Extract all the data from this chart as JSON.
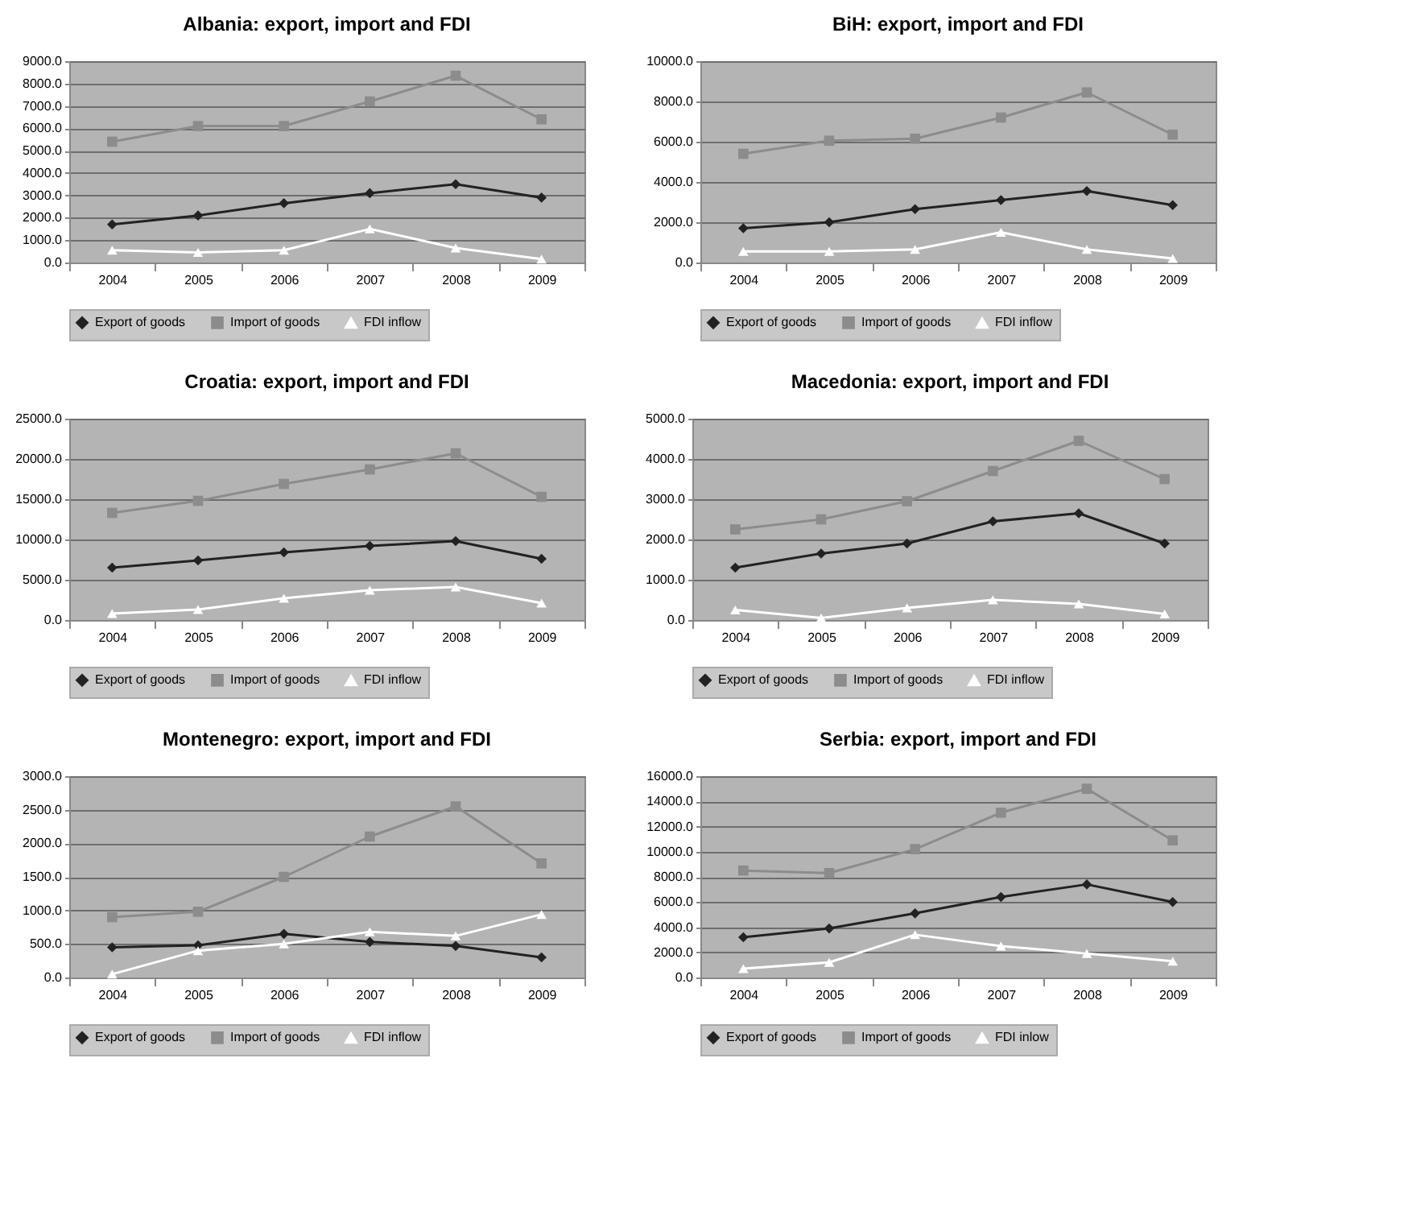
{
  "chart_data": [
    {
      "type": "line",
      "title": "Albania: export, import and FDI",
      "categories": [
        "2004",
        "2005",
        "2006",
        "2007",
        "2008",
        "2009"
      ],
      "grid": "y",
      "legend": "bottom",
      "ylim": [
        0,
        9000
      ],
      "yticks": [
        {
          "value": 0,
          "label": "0.0"
        },
        {
          "value": 1000,
          "label": "1000.0"
        },
        {
          "value": 2000,
          "label": "2000.0"
        },
        {
          "value": 3000,
          "label": "3000.0"
        },
        {
          "value": 4000,
          "label": "4000.0"
        },
        {
          "value": 5000,
          "label": "5000.0"
        },
        {
          "value": 6000,
          "label": "6000.0"
        },
        {
          "value": 7000,
          "label": "7000.0"
        },
        {
          "value": 8000,
          "label": "8000.0"
        },
        {
          "value": 9000,
          "label": "9000.0"
        }
      ],
      "series": [
        {
          "name": "Export of goods",
          "color": "#222222",
          "marker": "diamond",
          "values": [
            1700,
            2100,
            2650,
            3100,
            3500,
            2900
          ]
        },
        {
          "name": "Import of goods",
          "color": "#8c8c8c",
          "marker": "square",
          "values": [
            5400,
            6100,
            6100,
            7200,
            8350,
            6400
          ]
        },
        {
          "name": "FDI inflow",
          "color": "#ffffff",
          "marker": "triangle",
          "values": [
            550,
            450,
            550,
            1500,
            650,
            150
          ]
        }
      ]
    },
    {
      "type": "line",
      "title": "BiH: export, import and FDI",
      "categories": [
        "2004",
        "2005",
        "2006",
        "2007",
        "2008",
        "2009"
      ],
      "grid": "y",
      "legend": "bottom",
      "ylim": [
        0,
        10000
      ],
      "yticks": [
        {
          "value": 0,
          "label": "0.0"
        },
        {
          "value": 2000,
          "label": "2000.0"
        },
        {
          "value": 4000,
          "label": "4000.0"
        },
        {
          "value": 6000,
          "label": "6000.0"
        },
        {
          "value": 8000,
          "label": "8000.0"
        },
        {
          "value": 10000,
          "label": "10000.0"
        }
      ],
      "series": [
        {
          "name": "Export of goods",
          "color": "#222222",
          "marker": "diamond",
          "values": [
            1700,
            2000,
            2650,
            3100,
            3550,
            2850
          ]
        },
        {
          "name": "Import of goods",
          "color": "#8c8c8c",
          "marker": "square",
          "values": [
            5400,
            6050,
            6150,
            7200,
            8450,
            6350
          ]
        },
        {
          "name": "FDI inflow",
          "color": "#ffffff",
          "marker": "triangle",
          "values": [
            550,
            550,
            650,
            1500,
            650,
            200
          ]
        }
      ]
    },
    {
      "type": "line",
      "title": "Croatia: export, import and FDI",
      "categories": [
        "2004",
        "2005",
        "2006",
        "2007",
        "2008",
        "2009"
      ],
      "grid": "y",
      "legend": "bottom",
      "ylim": [
        0,
        25000
      ],
      "yticks": [
        {
          "value": 0,
          "label": "0.0"
        },
        {
          "value": 5000,
          "label": "5000.0"
        },
        {
          "value": 10000,
          "label": "10000.0"
        },
        {
          "value": 15000,
          "label": "15000.0"
        },
        {
          "value": 20000,
          "label": "20000.0"
        },
        {
          "value": 25000,
          "label": "25000.0"
        }
      ],
      "series": [
        {
          "name": "Export of goods",
          "color": "#222222",
          "marker": "diamond",
          "values": [
            6500,
            7400,
            8400,
            9200,
            9800,
            7600
          ]
        },
        {
          "name": "Import of goods",
          "color": "#8c8c8c",
          "marker": "square",
          "values": [
            13300,
            14800,
            16900,
            18700,
            20700,
            15300
          ]
        },
        {
          "name": "FDI inflow",
          "color": "#ffffff",
          "marker": "triangle",
          "values": [
            800,
            1300,
            2700,
            3700,
            4100,
            2100
          ]
        }
      ]
    },
    {
      "type": "line",
      "title": "Macedonia: export, import and FDI",
      "categories": [
        "2004",
        "2005",
        "2006",
        "2007",
        "2008",
        "2009"
      ],
      "grid": "y",
      "legend": "bottom",
      "ylim": [
        0,
        5000
      ],
      "yticks": [
        {
          "value": 0,
          "label": "0.0"
        },
        {
          "value": 1000,
          "label": "1000.0"
        },
        {
          "value": 2000,
          "label": "2000.0"
        },
        {
          "value": 3000,
          "label": "3000.0"
        },
        {
          "value": 4000,
          "label": "4000.0"
        },
        {
          "value": 5000,
          "label": "5000.0"
        }
      ],
      "series": [
        {
          "name": "Export of goods",
          "color": "#222222",
          "marker": "diamond",
          "values": [
            1300,
            1650,
            1900,
            2450,
            2650,
            1900
          ]
        },
        {
          "name": "Import of goods",
          "color": "#8c8c8c",
          "marker": "square",
          "values": [
            2250,
            2500,
            2950,
            3700,
            4450,
            3500
          ]
        },
        {
          "name": "FDI inflow",
          "color": "#ffffff",
          "marker": "triangle",
          "values": [
            250,
            50,
            300,
            500,
            400,
            150
          ]
        }
      ]
    },
    {
      "type": "line",
      "title": "Montenegro: export, import and FDI",
      "categories": [
        "2004",
        "2005",
        "2006",
        "2007",
        "2008",
        "2009"
      ],
      "grid": "y",
      "legend": "bottom",
      "ylim": [
        0,
        3000
      ],
      "yticks": [
        {
          "value": 0,
          "label": "0.0"
        },
        {
          "value": 500,
          "label": "500.0"
        },
        {
          "value": 1000,
          "label": "1000.0"
        },
        {
          "value": 1500,
          "label": "1500.0"
        },
        {
          "value": 2000,
          "label": "2000.0"
        },
        {
          "value": 2500,
          "label": "2500.0"
        },
        {
          "value": 3000,
          "label": "3000.0"
        }
      ],
      "series": [
        {
          "name": "Export of goods",
          "color": "#222222",
          "marker": "diamond",
          "values": [
            450,
            480,
            650,
            530,
            470,
            300
          ]
        },
        {
          "name": "Import of goods",
          "color": "#8c8c8c",
          "marker": "square",
          "values": [
            900,
            980,
            1500,
            2100,
            2550,
            1700
          ]
        },
        {
          "name": "FDI inflow",
          "color": "#ffffff",
          "marker": "triangle",
          "values": [
            50,
            400,
            500,
            680,
            620,
            940
          ]
        }
      ]
    },
    {
      "type": "line",
      "title": "Serbia: export, import and FDI",
      "categories": [
        "2004",
        "2005",
        "2006",
        "2007",
        "2008",
        "2009"
      ],
      "grid": "y",
      "legend": "bottom",
      "ylim": [
        0,
        16000
      ],
      "yticks": [
        {
          "value": 0,
          "label": "0.0"
        },
        {
          "value": 2000,
          "label": "2000.0"
        },
        {
          "value": 4000,
          "label": "4000.0"
        },
        {
          "value": 6000,
          "label": "6000.0"
        },
        {
          "value": 8000,
          "label": "8000.0"
        },
        {
          "value": 10000,
          "label": "10000.0"
        },
        {
          "value": 12000,
          "label": "12000.0"
        },
        {
          "value": 14000,
          "label": "14000.0"
        },
        {
          "value": 16000,
          "label": "16000.0"
        }
      ],
      "series": [
        {
          "name": "Export of goods",
          "color": "#222222",
          "marker": "diamond",
          "values": [
            3200,
            3900,
            5100,
            6400,
            7400,
            6000
          ]
        },
        {
          "name": "Import of goods",
          "color": "#8c8c8c",
          "marker": "square",
          "values": [
            8500,
            8300,
            10200,
            13100,
            15000,
            10900
          ]
        },
        {
          "name": "FDI inlow",
          "color": "#ffffff",
          "marker": "triangle",
          "values": [
            700,
            1200,
            3400,
            2500,
            1900,
            1300
          ]
        }
      ]
    }
  ]
}
